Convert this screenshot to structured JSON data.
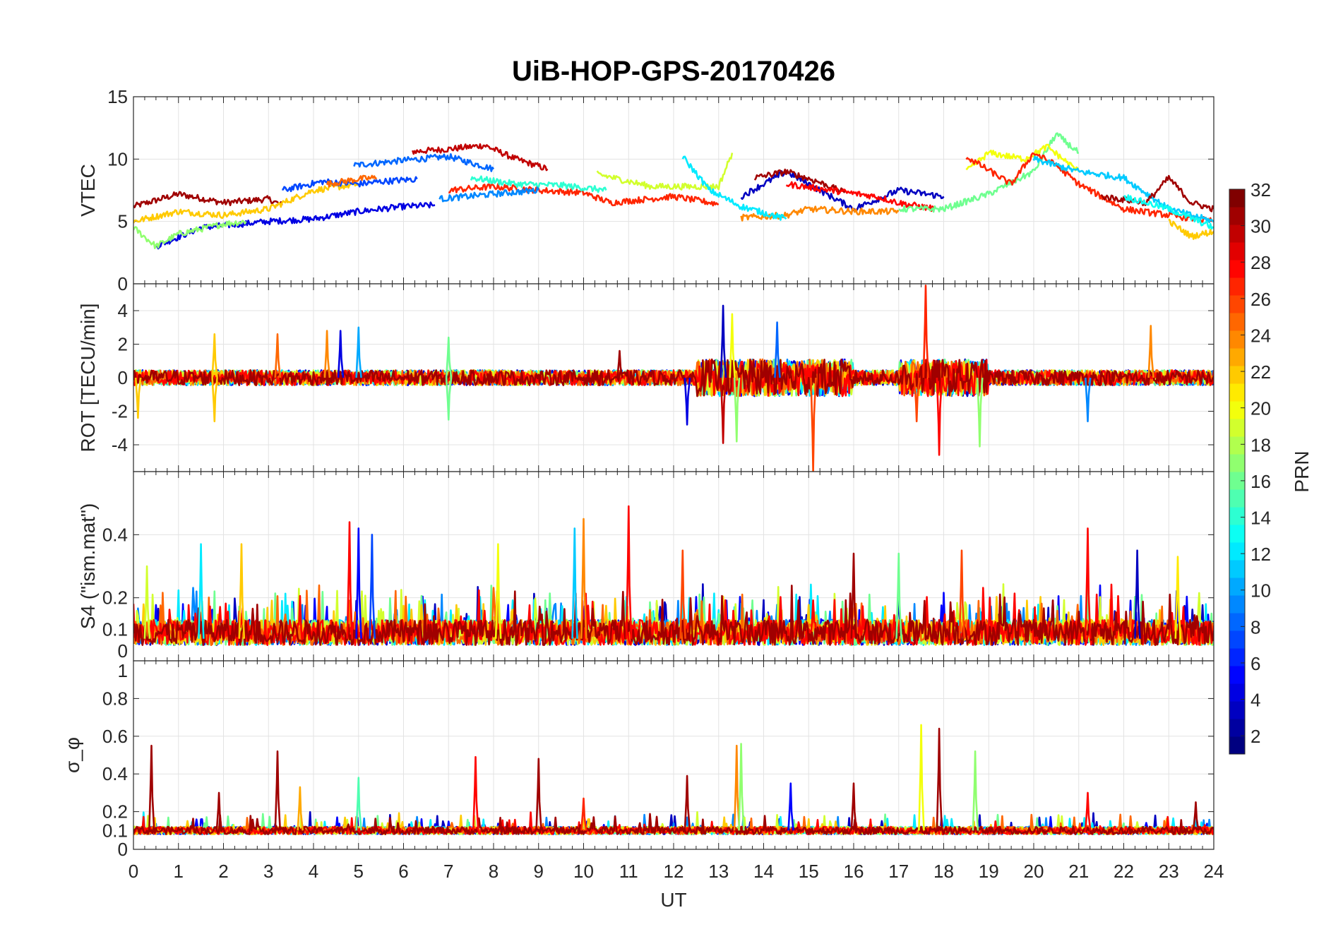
{
  "chart_data": {
    "type": "line",
    "title": "UiB-HOP-GPS-20170426",
    "xlabel": "UT",
    "xlim": [
      0,
      24
    ],
    "xticks": [
      "0",
      "1",
      "2",
      "3",
      "4",
      "5",
      "6",
      "7",
      "8",
      "9",
      "10",
      "11",
      "12",
      "13",
      "14",
      "15",
      "16",
      "17",
      "18",
      "19",
      "20",
      "21",
      "22",
      "23",
      "24"
    ],
    "grid": true,
    "colorbar": {
      "label": "PRN",
      "colormap": "jet",
      "range": [
        1,
        32
      ],
      "levels": 32,
      "ticks": [
        "2",
        "4",
        "6",
        "8",
        "10",
        "12",
        "14",
        "16",
        "18",
        "20",
        "22",
        "24",
        "26",
        "28",
        "30",
        "32"
      ],
      "placement": "right"
    },
    "panels": [
      {
        "ylabel": "VTEC",
        "ylim": [
          0,
          15
        ],
        "yticks": [
          "0",
          "5",
          "10",
          "15"
        ],
        "traces": [
          {
            "prn": 31,
            "points": [
              [
                0,
                6.2
              ],
              [
                1,
                7.2
              ],
              [
                2,
                6.5
              ],
              [
                3,
                6.8
              ],
              [
                3.3,
                6.3
              ]
            ]
          },
          {
            "prn": 30,
            "points": [
              [
                6.2,
                10.6
              ],
              [
                7,
                10.8
              ],
              [
                7.8,
                11.1
              ],
              [
                8.5,
                10
              ],
              [
                9.2,
                9.2
              ]
            ]
          },
          {
            "prn": 8,
            "points": [
              [
                4.9,
                9.5
              ],
              [
                6,
                9.9
              ],
              [
                7,
                10.2
              ],
              [
                8,
                9.2
              ]
            ]
          },
          {
            "prn": 4,
            "points": [
              [
                0.5,
                3
              ],
              [
                1.5,
                4.5
              ],
              [
                3,
                5
              ],
              [
                4,
                5.2
              ],
              [
                5,
                5.8
              ],
              [
                6,
                6.2
              ],
              [
                6.7,
                6.3
              ]
            ]
          },
          {
            "prn": 17,
            "points": [
              [
                0,
                4.5
              ],
              [
                0.5,
                3
              ],
              [
                1,
                4
              ],
              [
                2,
                4.8
              ],
              [
                2.5,
                5
              ]
            ]
          },
          {
            "prn": 22,
            "points": [
              [
                0,
                5
              ],
              [
                1,
                5.8
              ],
              [
                2,
                5.5
              ],
              [
                3,
                6
              ],
              [
                4,
                7.5
              ],
              [
                5,
                8
              ]
            ]
          },
          {
            "prn": 7,
            "points": [
              [
                3.3,
                7.5
              ],
              [
                4.2,
                8.2
              ],
              [
                5,
                8
              ],
              [
                5.5,
                8.2
              ],
              [
                6.3,
                8.4
              ]
            ]
          },
          {
            "prn": 25,
            "points": [
              [
                4.3,
                8
              ],
              [
                5,
                8.4
              ],
              [
                5.4,
                8.5
              ]
            ]
          },
          {
            "prn": 27,
            "points": [
              [
                7,
                7.5
              ],
              [
                8,
                7.8
              ],
              [
                9,
                7.5
              ],
              [
                10,
                7.3
              ],
              [
                10.6,
                6.5
              ],
              [
                12,
                7
              ],
              [
                13,
                6.4
              ]
            ]
          },
          {
            "prn": 14,
            "points": [
              [
                7.5,
                8.5
              ],
              [
                8.5,
                8
              ],
              [
                9.5,
                7.9
              ],
              [
                10.5,
                7.5
              ]
            ]
          },
          {
            "prn": 19,
            "points": [
              [
                10.3,
                8.8
              ],
              [
                11.5,
                7.8
              ],
              [
                12.3,
                7.8
              ],
              [
                13,
                7.8
              ],
              [
                13.3,
                10.5
              ]
            ]
          },
          {
            "prn": 9,
            "points": [
              [
                6.8,
                6.8
              ],
              [
                8,
                7.2
              ],
              [
                9,
                7.5
              ]
            ]
          },
          {
            "prn": 3,
            "points": [
              [
                13.5,
                7
              ],
              [
                14.5,
                9
              ],
              [
                15,
                8
              ],
              [
                16,
                6
              ],
              [
                17,
                7.5
              ],
              [
                18,
                7
              ]
            ]
          },
          {
            "prn": 31,
            "points": [
              [
                13.8,
                8.5
              ],
              [
                14.5,
                9
              ],
              [
                15.2,
                8.2
              ],
              [
                15.8,
                7.3
              ]
            ]
          },
          {
            "prn": 28,
            "points": [
              [
                14.5,
                8
              ],
              [
                15.5,
                7.5
              ],
              [
                16.5,
                7
              ],
              [
                17,
                6.5
              ],
              [
                17.8,
                6
              ]
            ]
          },
          {
            "prn": 24,
            "points": [
              [
                13.5,
                5.3
              ],
              [
                14.5,
                5.5
              ],
              [
                15,
                6
              ],
              [
                16,
                5.8
              ],
              [
                17,
                5.8
              ]
            ]
          },
          {
            "prn": 12,
            "points": [
              [
                12.2,
                10.2
              ],
              [
                12.8,
                7.5
              ],
              [
                13.5,
                6.2
              ],
              [
                14.5,
                5.2
              ]
            ]
          },
          {
            "prn": 16,
            "points": [
              [
                17,
                6
              ],
              [
                18,
                6
              ],
              [
                19,
                7.2
              ],
              [
                20,
                9
              ],
              [
                20.5,
                12
              ],
              [
                21,
                10.5
              ]
            ]
          },
          {
            "prn": 20,
            "points": [
              [
                18.5,
                9
              ],
              [
                19,
                10.5
              ],
              [
                19.8,
                10
              ],
              [
                20.3,
                11
              ],
              [
                21,
                9
              ]
            ]
          },
          {
            "prn": 27,
            "points": [
              [
                18.5,
                10.2
              ],
              [
                19.5,
                8
              ],
              [
                20,
                10.5
              ],
              [
                20.5,
                9.5
              ],
              [
                21,
                8
              ],
              [
                22,
                6
              ],
              [
                23,
                5.5
              ],
              [
                24,
                5
              ]
            ]
          },
          {
            "prn": 11,
            "points": [
              [
                20,
                10
              ],
              [
                21,
                9
              ],
              [
                22,
                8.5
              ],
              [
                23,
                6
              ],
              [
                24,
                5
              ]
            ]
          },
          {
            "prn": 31,
            "points": [
              [
                21.5,
                7
              ],
              [
                22.5,
                6.5
              ],
              [
                23,
                8.5
              ],
              [
                23.5,
                6.5
              ],
              [
                24,
                6
              ]
            ]
          },
          {
            "prn": 22,
            "points": [
              [
                23,
                5
              ],
              [
                23.5,
                3.8
              ],
              [
                24,
                4.2
              ]
            ]
          },
          {
            "prn": 13,
            "points": [
              [
                22,
                7
              ],
              [
                23,
                6
              ],
              [
                24,
                4.5
              ]
            ]
          }
        ]
      },
      {
        "ylabel": "ROT [TECU/min]",
        "ylim": [
          -5.6,
          5.6
        ],
        "yticks": [
          "-4",
          "-2",
          "0",
          "2",
          "4"
        ],
        "baseline": 0,
        "spikes": [
          [
            0.1,
            -2.4,
            22
          ],
          [
            1.8,
            2.6,
            22
          ],
          [
            1.8,
            -2.6,
            22
          ],
          [
            3.2,
            2.6,
            25
          ],
          [
            4.3,
            2.8,
            24
          ],
          [
            4.6,
            2.8,
            4
          ],
          [
            5,
            3,
            10
          ],
          [
            7,
            2.4,
            16
          ],
          [
            7,
            -2.5,
            16
          ],
          [
            10.8,
            1.6,
            31
          ],
          [
            12.3,
            -2.8,
            4
          ],
          [
            13.1,
            4.3,
            3
          ],
          [
            13.1,
            -3.9,
            30
          ],
          [
            13.3,
            3.8,
            20
          ],
          [
            13.4,
            -3.8,
            17
          ],
          [
            14.3,
            3.3,
            8
          ],
          [
            15.1,
            -5.6,
            26
          ],
          [
            17.6,
            5.5,
            27
          ],
          [
            17.4,
            -2.6,
            26
          ],
          [
            17.9,
            -4.6,
            28
          ],
          [
            18.8,
            -4.1,
            17
          ],
          [
            22.6,
            3.1,
            24
          ],
          [
            21.2,
            -2.6,
            9
          ]
        ]
      },
      {
        "ylabel": "S4 (\"ism.mat\")",
        "ylim": [
          0,
          0.6
        ],
        "yticks": [
          "0",
          "0.1",
          "0.2",
          "0.4"
        ],
        "spikes": [
          [
            0.3,
            0.3,
            19
          ],
          [
            1.5,
            0.37,
            12
          ],
          [
            2.4,
            0.37,
            22
          ],
          [
            4.8,
            0.44,
            28
          ],
          [
            5,
            0.42,
            5
          ],
          [
            5.3,
            0.4,
            7
          ],
          [
            8.1,
            0.37,
            20
          ],
          [
            9.8,
            0.42,
            11
          ],
          [
            10,
            0.45,
            24
          ],
          [
            11,
            0.49,
            28
          ],
          [
            12.2,
            0.35,
            26
          ],
          [
            16,
            0.34,
            31
          ],
          [
            17,
            0.34,
            16
          ],
          [
            18.4,
            0.35,
            26
          ],
          [
            21.2,
            0.42,
            28
          ],
          [
            22.3,
            0.35,
            3
          ],
          [
            23.2,
            0.33,
            21
          ]
        ]
      },
      {
        "ylabel": "σ_φ",
        "ylim": [
          0,
          1
        ],
        "yticks": [
          "0",
          "0.1",
          "0.2",
          "0.4",
          "0.6",
          "0.8",
          "1"
        ],
        "spikes": [
          [
            0.4,
            0.55,
            31
          ],
          [
            1.9,
            0.3,
            31
          ],
          [
            3.2,
            0.52,
            31
          ],
          [
            3.7,
            0.33,
            23
          ],
          [
            5,
            0.38,
            15
          ],
          [
            7.6,
            0.49,
            28
          ],
          [
            9,
            0.48,
            31
          ],
          [
            10,
            0.27,
            27
          ],
          [
            12.3,
            0.39,
            31
          ],
          [
            13.4,
            0.55,
            24
          ],
          [
            13.5,
            0.56,
            17
          ],
          [
            14.6,
            0.35,
            5
          ],
          [
            16,
            0.35,
            31
          ],
          [
            17.5,
            0.66,
            20
          ],
          [
            17.9,
            0.64,
            31
          ],
          [
            18.7,
            0.52,
            17
          ],
          [
            21.2,
            0.3,
            28
          ],
          [
            23.6,
            0.25,
            31
          ]
        ]
      }
    ]
  }
}
